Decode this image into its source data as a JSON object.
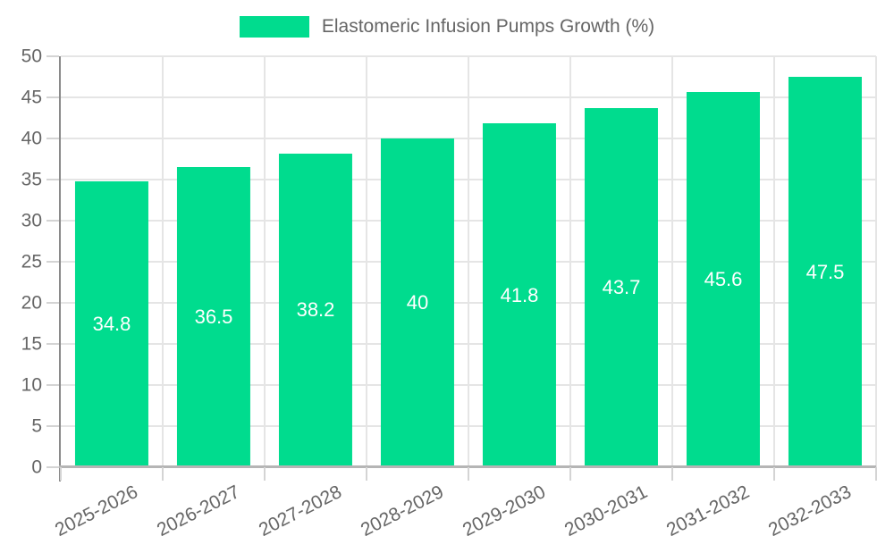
{
  "legend": {
    "label": "Elastomeric Infusion Pumps Growth (%)"
  },
  "colors": {
    "bar": "#00DC8E",
    "text": "#666666",
    "grid": "#e5e5e5",
    "tick": "#d4d4d4",
    "axis_y": "#8a8a8a",
    "axis_x": "#b5b5b5",
    "value_label": "#ffffff"
  },
  "chart_data": {
    "type": "bar",
    "title": "Elastomeric Infusion Pumps Growth (%)",
    "categories": [
      "2025-2026",
      "2026-2027",
      "2027-2028",
      "2028-2029",
      "2029-2030",
      "2030-2031",
      "2031-2032",
      "2032-2033"
    ],
    "values": [
      34.8,
      36.5,
      38.2,
      40,
      41.8,
      43.7,
      45.6,
      47.5
    ],
    "value_labels": [
      "34.8",
      "36.5",
      "38.2",
      "40",
      "41.8",
      "43.7",
      "45.6",
      "47.5"
    ],
    "xlabel": "",
    "ylabel": "",
    "ylim": [
      0,
      50
    ],
    "ytick_step": 5,
    "yticks": [
      0,
      5,
      10,
      15,
      20,
      25,
      30,
      35,
      40,
      45,
      50
    ],
    "grid": true,
    "legend_position": "top-center",
    "x_label_rotation_deg": -27,
    "bar_label_position": "center-of-bar"
  }
}
